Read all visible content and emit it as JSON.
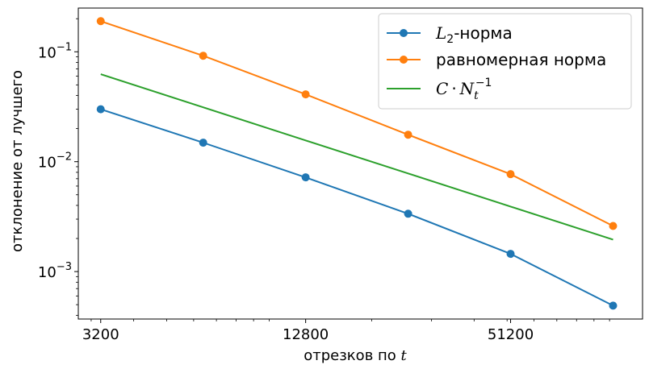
{
  "chart_data": {
    "type": "line",
    "xscale": "log",
    "yscale": "log",
    "xlim": [
      2750,
      125000
    ],
    "ylim": [
      0.00037,
      0.25
    ],
    "xticks": [
      3200,
      12800,
      51200
    ],
    "xtick_labels": [
      "3200",
      "12800",
      "51200"
    ],
    "ytick_labels": [
      {
        "mantissa": "10",
        "exp": "−1",
        "value": 0.1
      },
      {
        "mantissa": "10",
        "exp": "−2",
        "value": 0.01
      },
      {
        "mantissa": "10",
        "exp": "−3",
        "value": 0.001
      }
    ],
    "xlabel_text": "отрезков по ",
    "xlabel_var": "t",
    "ylabel": "отклонение от лучшего",
    "grid": false,
    "legend_position": "top-right",
    "x": [
      3200,
      6400,
      12800,
      25600,
      51200,
      102400
    ],
    "series": [
      {
        "key": "l2",
        "legend_main": "L",
        "legend_sub": "2",
        "legend_suffix": "-норма",
        "color": "#1f77b4",
        "marker": "circle",
        "values": [
          0.03,
          0.0149,
          0.0072,
          0.00336,
          0.00145,
          0.00049
        ]
      },
      {
        "key": "uniform",
        "legend_text": "равномерная норма",
        "color": "#ff7f0e",
        "marker": "circle",
        "values": [
          0.19,
          0.092,
          0.041,
          0.0176,
          0.0077,
          0.0026
        ]
      },
      {
        "key": "ref",
        "legend_c": "C",
        "legend_dot": "·",
        "legend_n": "N",
        "legend_sub": "t",
        "legend_sup": "−1",
        "color": "#2ca02c",
        "marker": "none",
        "values": [
          0.0625,
          0.03125,
          0.015625,
          0.0078125,
          0.00390625,
          0.001953125
        ]
      }
    ]
  }
}
